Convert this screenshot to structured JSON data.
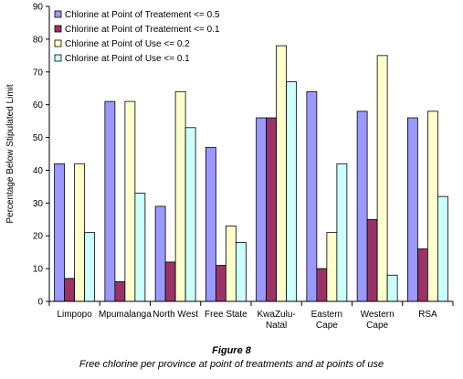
{
  "figure": {
    "label": "Figure 8",
    "caption": "Free chlorine per province at point of treatments and  at points of use"
  },
  "chart_data": {
    "type": "bar",
    "ylabel": "Percentage Below Stipulated Limit",
    "xlabel": "",
    "ylim": [
      0,
      90
    ],
    "yticks": [
      0,
      10,
      20,
      30,
      40,
      50,
      60,
      70,
      80,
      90
    ],
    "grid": false,
    "legend_position": "top-left",
    "categories": [
      [
        "Limpopo"
      ],
      [
        "Mpumalanga"
      ],
      [
        "North West"
      ],
      [
        "Free State"
      ],
      [
        "KwaZulu-",
        "Natal"
      ],
      [
        "Eastern",
        "Cape"
      ],
      [
        "Western",
        "Cape"
      ],
      [
        "RSA"
      ]
    ],
    "series": [
      {
        "name": "Chlorine at Point of Treatement <= 0.5",
        "color": "#9999ff",
        "values": [
          42,
          61,
          29,
          47,
          56,
          64,
          58,
          56
        ]
      },
      {
        "name": "Chlorine at Point of Treatement <= 0.1",
        "color": "#993366",
        "values": [
          7,
          6,
          12,
          11,
          56,
          10,
          25,
          16
        ]
      },
      {
        "name": "Chlorine at Point of Use <= 0.2",
        "color": "#ffffcc",
        "values": [
          42,
          61,
          64,
          23,
          78,
          21,
          75,
          58
        ]
      },
      {
        "name": "Chlorine at Point of Use <= 0.1",
        "color": "#ccffff",
        "values": [
          21,
          33,
          53,
          18,
          67,
          42,
          8,
          32
        ]
      }
    ]
  }
}
